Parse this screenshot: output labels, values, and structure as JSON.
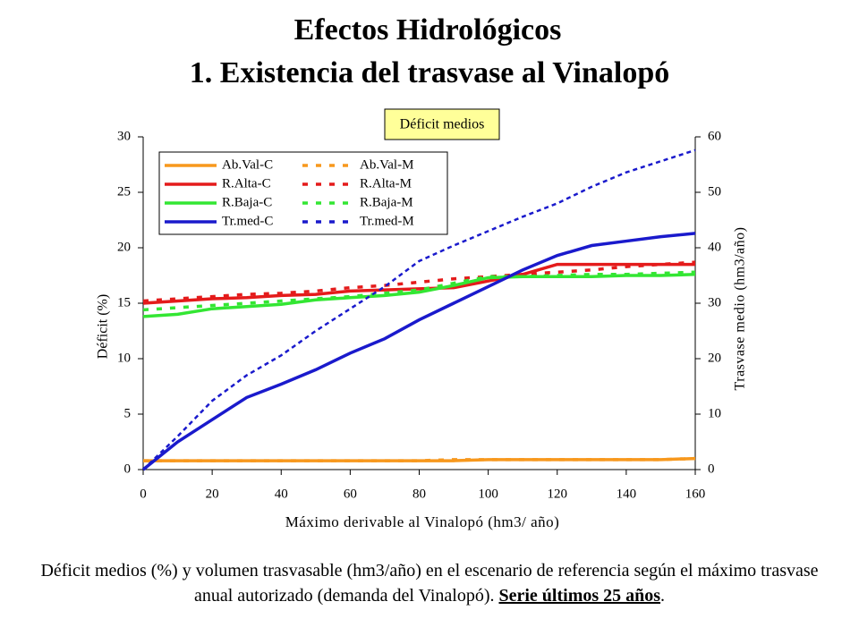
{
  "title": "Efectos Hidrológicos",
  "subtitle": "1. Existencia del trasvase al Vinalopó",
  "chart_data": {
    "type": "line",
    "title": "Déficit medios",
    "x_label": "Máximo derivable al Vinalopó (hm3/ año)",
    "y_label": "Déficit (%)",
    "y2_label": "Trasvase medio (hm3/año)",
    "x": [
      0,
      10,
      20,
      30,
      40,
      50,
      60,
      70,
      80,
      90,
      100,
      110,
      120,
      130,
      140,
      150,
      160
    ],
    "xlim": [
      0,
      160
    ],
    "xticks": [
      0,
      20,
      40,
      60,
      80,
      100,
      120,
      140,
      160
    ],
    "ylim": [
      0,
      30
    ],
    "yticks": [
      0,
      5,
      10,
      15,
      20,
      25,
      30
    ],
    "y2lim": [
      0,
      60
    ],
    "y2ticks": [
      0,
      10,
      20,
      30,
      40,
      50,
      60
    ],
    "grid": false,
    "series": [
      {
        "name": "Ab.Val-C",
        "color": "#f7981d",
        "dashed": false,
        "values": [
          0.8,
          0.8,
          0.8,
          0.8,
          0.8,
          0.8,
          0.8,
          0.8,
          0.8,
          0.8,
          0.9,
          0.9,
          0.9,
          0.9,
          0.9,
          0.9,
          1.0
        ]
      },
      {
        "name": "Ab.Val-M",
        "color": "#f7981d",
        "dashed": true,
        "values": [
          0.8,
          0.8,
          0.8,
          0.8,
          0.8,
          0.8,
          0.8,
          0.8,
          0.8,
          0.9,
          0.9,
          0.9,
          0.9,
          0.9,
          0.9,
          0.9,
          1.0
        ]
      },
      {
        "name": "R.Alta-C",
        "color": "#e41b1b",
        "dashed": false,
        "values": [
          15.0,
          15.2,
          15.4,
          15.5,
          15.7,
          15.8,
          16.1,
          16.2,
          16.3,
          16.4,
          17.0,
          17.6,
          18.5,
          18.5,
          18.5,
          18.5,
          18.5
        ]
      },
      {
        "name": "R.Alta-M",
        "color": "#e41b1b",
        "dashed": true,
        "values": [
          15.2,
          15.4,
          15.6,
          15.8,
          15.9,
          16.1,
          16.4,
          16.6,
          16.9,
          17.2,
          17.4,
          17.6,
          17.8,
          18.0,
          18.3,
          18.5,
          18.7
        ]
      },
      {
        "name": "R.Baja-C",
        "color": "#33e633",
        "dashed": false,
        "values": [
          13.8,
          14.0,
          14.5,
          14.7,
          14.9,
          15.3,
          15.5,
          15.7,
          16.0,
          16.6,
          17.3,
          17.4,
          17.4,
          17.4,
          17.5,
          17.5,
          17.6
        ]
      },
      {
        "name": "R.Baja-M",
        "color": "#33e633",
        "dashed": true,
        "values": [
          14.4,
          14.6,
          14.8,
          15.0,
          15.2,
          15.4,
          15.6,
          15.9,
          16.2,
          16.8,
          17.4,
          17.4,
          17.5,
          17.6,
          17.6,
          17.7,
          17.8
        ]
      },
      {
        "name": "Tr.med-C",
        "color": "#1a1acc",
        "dashed": false,
        "axis": "y2",
        "values": [
          0,
          5,
          9,
          13,
          15.4,
          18,
          21,
          23.6,
          27,
          30,
          33,
          36,
          38.6,
          40.4,
          41.2,
          42,
          42.6
        ]
      },
      {
        "name": "Tr.med-M",
        "color": "#1a1acc",
        "dashed": true,
        "axis": "y2",
        "values": [
          0,
          6,
          12.4,
          17,
          20.6,
          25,
          29,
          33,
          37.6,
          40.4,
          43,
          45.6,
          48,
          51,
          53.6,
          55.6,
          57.6
        ]
      }
    ]
  },
  "caption": {
    "text": "Déficit medios (%) y volumen trasvasable (hm3/año) en el escenario de referencia según el máximo trasvase anual autorizado (demanda del Vinalopó).",
    "emphasis": "Serie últimos 25 años",
    "end": "."
  }
}
